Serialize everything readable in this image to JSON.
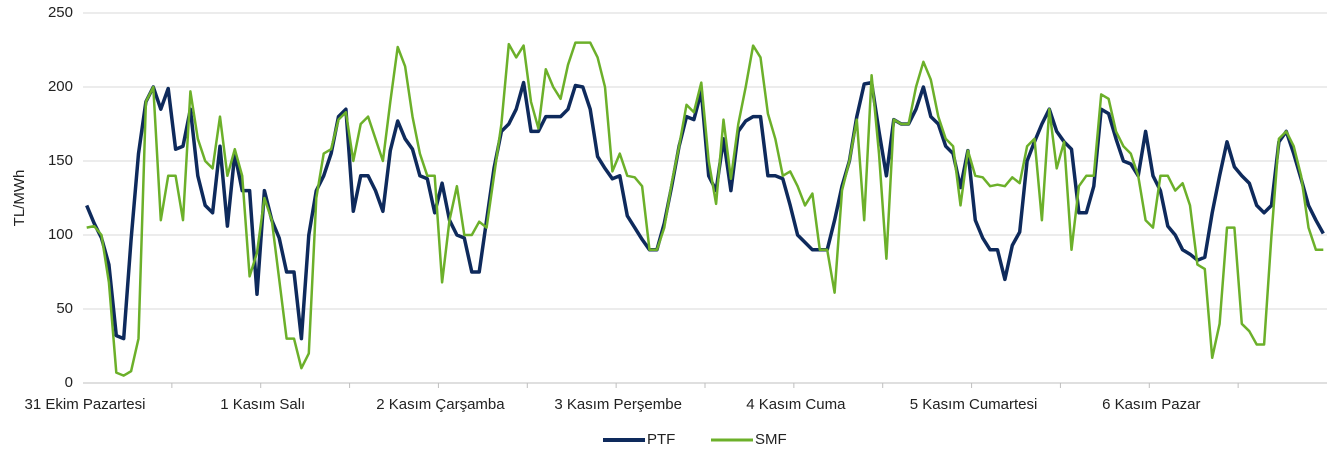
{
  "chart_data": {
    "type": "line",
    "y_label": "TL/MWh",
    "categories": [
      "31 Ekim Pazartesi",
      null,
      null,
      null,
      null,
      null,
      null,
      null,
      null,
      null,
      null,
      null,
      null,
      null,
      null,
      null,
      null,
      null,
      null,
      null,
      null,
      null,
      null,
      null,
      "1 Kasım Salı",
      null,
      null,
      null,
      null,
      null,
      null,
      null,
      null,
      null,
      null,
      null,
      null,
      null,
      null,
      null,
      null,
      null,
      null,
      null,
      null,
      null,
      null,
      null,
      "2 Kasım Çarşamba",
      null,
      null,
      null,
      null,
      null,
      null,
      null,
      null,
      null,
      null,
      null,
      null,
      null,
      null,
      null,
      null,
      null,
      null,
      null,
      null,
      null,
      null,
      null,
      "3 Kasım Perşembe",
      null,
      null,
      null,
      null,
      null,
      null,
      null,
      null,
      null,
      null,
      null,
      null,
      null,
      null,
      null,
      null,
      null,
      null,
      null,
      null,
      null,
      null,
      null,
      "4 Kasım Cuma",
      null,
      null,
      null,
      null,
      null,
      null,
      null,
      null,
      null,
      null,
      null,
      null,
      null,
      null,
      null,
      null,
      null,
      null,
      null,
      null,
      null,
      null,
      null,
      "5 Kasım Cumartesi",
      null,
      null,
      null,
      null,
      null,
      null,
      null,
      null,
      null,
      null,
      null,
      null,
      null,
      null,
      null,
      null,
      null,
      null,
      null,
      null,
      null,
      null,
      null,
      "6 Kasım Pazar",
      null,
      null,
      null,
      null,
      null,
      null,
      null,
      null,
      null,
      null,
      null,
      null,
      null,
      null,
      null,
      null,
      null,
      null,
      null,
      null,
      null,
      null,
      null
    ],
    "series": [
      {
        "name": "PTF",
        "color": "#0e2a5c",
        "values": [
          120,
          108,
          98,
          80,
          32,
          30,
          97,
          155,
          190,
          200,
          185,
          199,
          158,
          160,
          185,
          140,
          120,
          115,
          160,
          106,
          155,
          130,
          130,
          60,
          130,
          110,
          98,
          75,
          75,
          30,
          100,
          130,
          140,
          155,
          180,
          185,
          116,
          140,
          140,
          130,
          116,
          157,
          177,
          165,
          158,
          140,
          138,
          115,
          135,
          110,
          100,
          98,
          75,
          75,
          110,
          145,
          170,
          175,
          185,
          203,
          170,
          170,
          180,
          180,
          180,
          185,
          201,
          200,
          185,
          153,
          145,
          138,
          140,
          113,
          105,
          97,
          90,
          90,
          108,
          133,
          160,
          180,
          178,
          197,
          140,
          130,
          165,
          130,
          170,
          177,
          180,
          180,
          140,
          140,
          138,
          120,
          100,
          95,
          90,
          90,
          90,
          110,
          133,
          150,
          180,
          202,
          203,
          170,
          140,
          178,
          175,
          175,
          185,
          200,
          180,
          175,
          160,
          155,
          132,
          157,
          110,
          98,
          90,
          90,
          70,
          93,
          102,
          150,
          163,
          175,
          185,
          170,
          163,
          158,
          115,
          115,
          133,
          185,
          182,
          165,
          150,
          148,
          140,
          170,
          140,
          130,
          106,
          100,
          90,
          87,
          83,
          85,
          115,
          140,
          163,
          146,
          140,
          135,
          120,
          115,
          120,
          163,
          170,
          155,
          138,
          120,
          110,
          101
        ]
      },
      {
        "name": "SMF",
        "color": "#6cb02a",
        "values": [
          105,
          106,
          100,
          68,
          7,
          5,
          8,
          30,
          190,
          200,
          110,
          140,
          140,
          110,
          197,
          165,
          150,
          145,
          180,
          140,
          158,
          140,
          72,
          88,
          125,
          110,
          70,
          30,
          30,
          10,
          20,
          125,
          155,
          158,
          178,
          183,
          150,
          175,
          180,
          165,
          150,
          190,
          227,
          214,
          180,
          155,
          140,
          140,
          68,
          110,
          133,
          100,
          100,
          109,
          105,
          140,
          175,
          229,
          220,
          228,
          190,
          172,
          212,
          200,
          192,
          215,
          230,
          230,
          230,
          220,
          200,
          143,
          155,
          140,
          139,
          133,
          90,
          90,
          105,
          135,
          160,
          188,
          183,
          203,
          150,
          121,
          178,
          138,
          175,
          200,
          228,
          220,
          182,
          165,
          140,
          143,
          133,
          120,
          128,
          90,
          90,
          61,
          130,
          150,
          178,
          110,
          208,
          155,
          84,
          178,
          175,
          175,
          200,
          217,
          205,
          180,
          165,
          160,
          120,
          157,
          140,
          139,
          133,
          134,
          133,
          139,
          135,
          160,
          165,
          110,
          185,
          145,
          163,
          90,
          133,
          140,
          140,
          195,
          192,
          170,
          160,
          155,
          140,
          110,
          105,
          140,
          140,
          130,
          135,
          120,
          80,
          77,
          17,
          40,
          105,
          105,
          40,
          35,
          26,
          26,
          100,
          165,
          170,
          160,
          140,
          105,
          90,
          90
        ]
      }
    ],
    "ylim": [
      0,
      250
    ],
    "yticks": [
      0,
      50,
      100,
      150,
      200,
      250
    ],
    "grid": true,
    "legend": "bottom"
  }
}
